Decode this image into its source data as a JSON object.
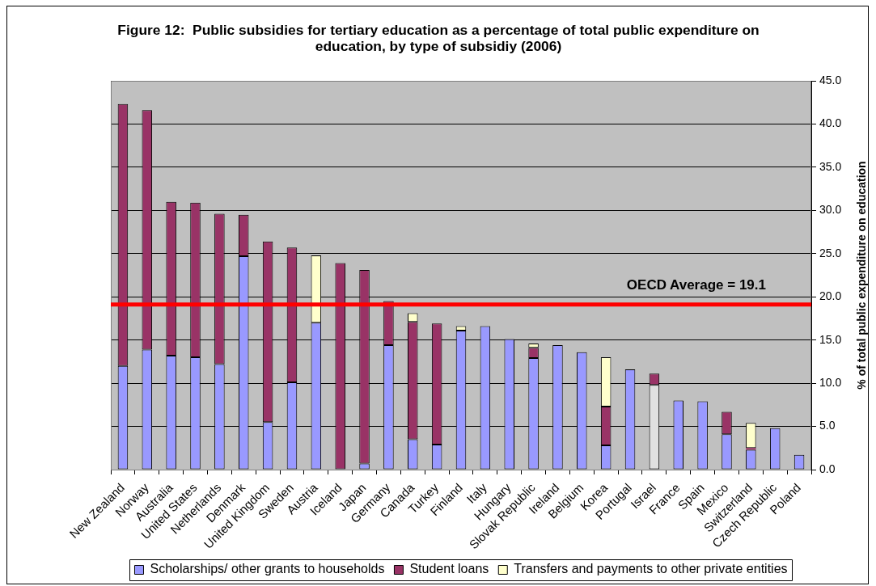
{
  "chart_data": {
    "type": "bar",
    "title": "Figure 12:  Public subsidies for tertiary education as a percentage of total public expenditure on education, by type of subsidiy (2006)",
    "ylabel": "% of total public expenditure on education",
    "categories": [
      "New Zealand",
      "Norway",
      "Australia",
      "United States",
      "Netherlands",
      "Denmark",
      "United Kingdom",
      "Sweden",
      "Austria",
      "Iceland",
      "Japan",
      "Germany",
      "Canada",
      "Turkey",
      "Finland",
      "Italy",
      "Hungary",
      "Slovak Republic",
      "Ireland",
      "Belgium",
      "Korea",
      "Portugal",
      "Israel",
      "France",
      "Spain",
      "Mexico",
      "Switzerland",
      "Czech Republic",
      "Poland"
    ],
    "stacked": true,
    "series": [
      {
        "name": "Scholarships/ other grants to households",
        "color": "#9999ff",
        "colors": [
          "#9999ff",
          "#9999ff",
          "#9999ff",
          "#9999ff",
          "#9999ff",
          "#9999ff",
          "#9999ff",
          "#9999ff",
          "#9999ff",
          "#9999ff",
          "#9999ff",
          "#9999ff",
          "#9999ff",
          "#9999ff",
          "#9999ff",
          "#9999ff",
          "#9999ff",
          "#9999ff",
          "#9999ff",
          "#9999ff",
          "#9999ff",
          "#9999ff",
          "#e0e0e0",
          "#9999ff",
          "#9999ff",
          "#9999ff",
          "#9999ff",
          "#9999ff",
          "#9999ff"
        ],
        "values": [
          12.0,
          13.9,
          13.2,
          13.0,
          12.2,
          24.7,
          5.5,
          10.1,
          17.0,
          0,
          0.7,
          14.4,
          3.5,
          2.9,
          16.1,
          16.6,
          15.1,
          12.9,
          14.4,
          13.6,
          2.8,
          11.6,
          9.8,
          8.0,
          7.9,
          4.1,
          2.3,
          4.8,
          1.7
        ]
      },
      {
        "name": "Student loans",
        "color": "#993366",
        "values": [
          30.3,
          27.7,
          17.8,
          17.9,
          17.4,
          4.8,
          20.9,
          15.6,
          0,
          23.9,
          22.4,
          5.1,
          13.6,
          14.0,
          0,
          0,
          0,
          1.2,
          0,
          0,
          4.5,
          0,
          1.3,
          0,
          0,
          2.6,
          0.2,
          0,
          0
        ]
      },
      {
        "name": "Transfers and payments to other private entities",
        "color": "#ffffcc",
        "values": [
          0,
          0,
          0,
          0,
          0,
          0,
          0,
          0,
          7.8,
          0,
          0,
          0,
          1.0,
          0,
          0.5,
          0,
          0,
          0.5,
          0,
          0,
          5.7,
          0,
          0,
          0,
          0,
          0,
          2.9,
          0,
          0
        ]
      }
    ],
    "ylim": [
      0,
      45
    ],
    "yticks": [
      {
        "value": 0,
        "label": "0.0"
      },
      {
        "value": 5,
        "label": "5.0"
      },
      {
        "value": 10,
        "label": "10.0"
      },
      {
        "value": 15,
        "label": "15.0"
      },
      {
        "value": 20,
        "label": "20.0"
      },
      {
        "value": 25,
        "label": "25.0"
      },
      {
        "value": 30,
        "label": "30.0"
      },
      {
        "value": 35,
        "label": "35.0"
      },
      {
        "value": 40,
        "label": "40.0"
      },
      {
        "value": 45,
        "label": "45.0"
      }
    ],
    "grid": "y",
    "legend": "bottom",
    "ref_lines": [
      {
        "axis": "y",
        "value": 19.1,
        "label": "OECD Average = 19.1",
        "color": "#ff0000"
      }
    ]
  }
}
